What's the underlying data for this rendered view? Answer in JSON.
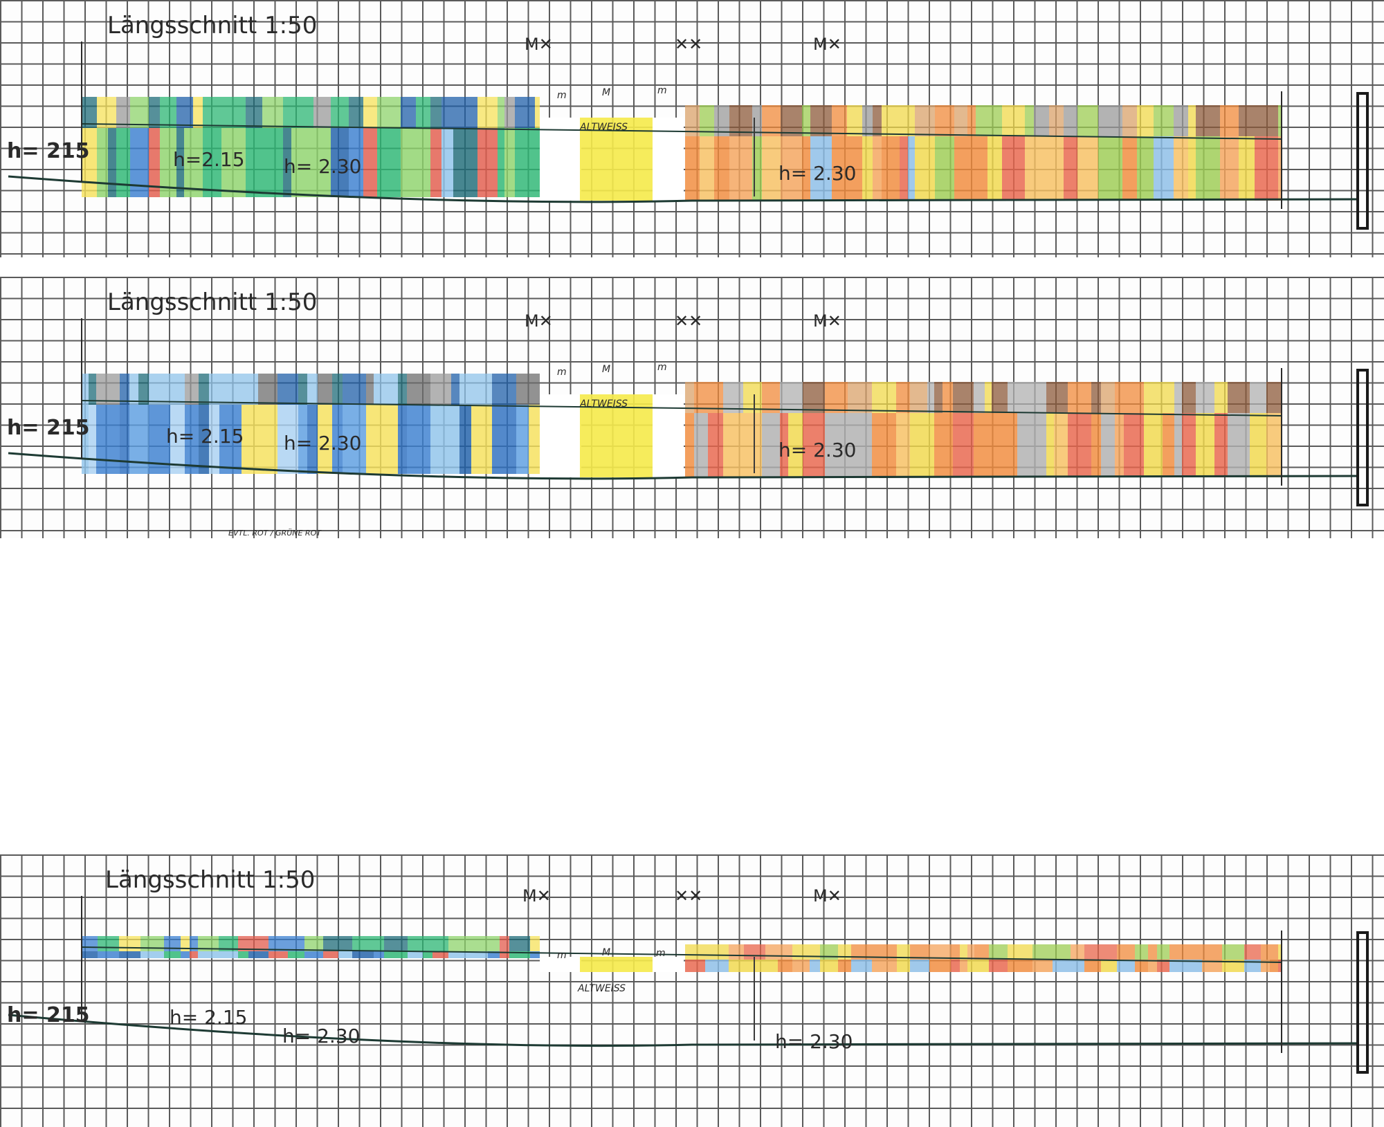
{
  "sections": [
    {
      "title": "Längsschnitt 1:50",
      "h_left": "h= 215",
      "h_mid1": "h=2.15",
      "h_mid2": "h= 2.30",
      "h_right": "h= 2.30",
      "white_label": "ALTWEISS",
      "m_labels": [
        "m",
        "M",
        "m"
      ],
      "fixture_symbols": [
        "M✕",
        "✕✕",
        "M✕"
      ],
      "footnote": "",
      "layout_style": "tall",
      "palette": {
        "cool": [
          "#3a7fd0",
          "#1f5fa8",
          "#2bb673",
          "#8ed36b",
          "#f5e15a",
          "#e25b4c",
          "#8fc3ea",
          "#1e6b78"
        ],
        "warm": [
          "#f08a3a",
          "#f4a35b",
          "#f0d84a",
          "#e8644a",
          "#9ccc52",
          "#8bbde6",
          "#f6c060"
        ],
        "caps_cool": [
          "#1e6b78",
          "#2bb673",
          "#8ed36b",
          "#f5e15a",
          "#9a9a9a",
          "#1f5fa8"
        ],
        "caps_warm": [
          "#8c5a3a",
          "#f08a3a",
          "#f0d84a",
          "#9ccc52",
          "#9a9a9a",
          "#d9a26a"
        ]
      }
    },
    {
      "title": "Längsschnitt 1:50",
      "h_left": "h= 215",
      "h_mid1": "h= 2.15",
      "h_mid2": "h= 2.30",
      "h_right": "h= 2.30",
      "white_label": "ALTWEISS",
      "m_labels": [
        "m",
        "M",
        "m"
      ],
      "fixture_symbols": [
        "M✕",
        "✕✕",
        "M✕"
      ],
      "footnote": "EVTL. ROT / GRÜNE ROT",
      "layout_style": "tall",
      "palette": {
        "cool": [
          "#3a7fd0",
          "#1f5fa8",
          "#8fc3ea",
          "#5b9ee0",
          "#f5e15a",
          "#a9d1f2",
          "#2d6fbf"
        ],
        "warm": [
          "#f08a3a",
          "#f4a35b",
          "#f0d84a",
          "#e8644a",
          "#f6c060",
          "#b0b0b0"
        ],
        "caps_cool": [
          "#9a9a9a",
          "#1e6b78",
          "#8fc3ea",
          "#6d6d6d",
          "#1f5fa8"
        ],
        "caps_warm": [
          "#8c5a3a",
          "#f08a3a",
          "#f0d84a",
          "#b0b0b0",
          "#d9a26a"
        ]
      }
    },
    {
      "title": "Längsschnitt 1:50",
      "h_left": "h= 215",
      "h_mid1": "h= 2.15",
      "h_mid2": "h= 2.30",
      "h_right": "h= 2.30",
      "white_label": "ALTWEISS",
      "m_labels": [
        "m",
        "M",
        "m"
      ],
      "fixture_symbols": [
        "M✕",
        "✕✕",
        "M✕"
      ],
      "footnote": "",
      "layout_style": "flat",
      "palette": {
        "cool": [
          "#3a7fd0",
          "#1f5fa8",
          "#8fc3ea",
          "#e25b4c",
          "#2bb673"
        ],
        "warm": [
          "#f08a3a",
          "#f4a35b",
          "#e8644a",
          "#8bbde6",
          "#f0d84a"
        ],
        "caps_cool": [
          "#2bb673",
          "#8ed36b",
          "#f5e15a",
          "#1e6b78",
          "#3a7fd0",
          "#e25b4c"
        ],
        "caps_warm": [
          "#f08a3a",
          "#f0d84a",
          "#9ccc52",
          "#e8644a",
          "#f4a35b"
        ]
      }
    }
  ]
}
